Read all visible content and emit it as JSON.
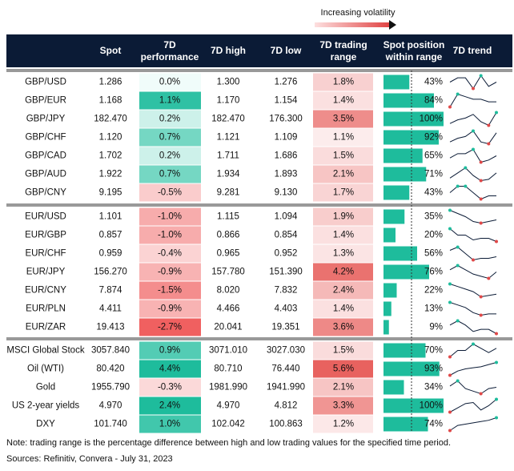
{
  "legend_note": "Increasing volatility",
  "columns": [
    [
      "Spot"
    ],
    [
      "7D",
      "performance"
    ],
    [
      "7D high"
    ],
    [
      "7D low"
    ],
    [
      "7D trading",
      "range"
    ],
    [
      "Spot position",
      "within range"
    ],
    [
      "7D trend"
    ]
  ],
  "groups": [
    [
      {
        "name": "GBP/USD",
        "spot": "1.286",
        "perf": "0.0%",
        "high": "1.300",
        "low": "1.276",
        "range": "1.8%",
        "position": "43%",
        "trend": [
          6,
          8,
          8,
          3,
          9,
          4,
          6
        ]
      },
      {
        "name": "GBP/EUR",
        "spot": "1.168",
        "perf": "1.1%",
        "high": "1.170",
        "low": "1.154",
        "range": "1.4%",
        "position": "84%",
        "trend": [
          3,
          8,
          7,
          6,
          6,
          5,
          5
        ]
      },
      {
        "name": "GBP/JPY",
        "spot": "182.470",
        "perf": "0.2%",
        "high": "182.470",
        "low": "176.300",
        "range": "3.5%",
        "position": "100%",
        "trend": [
          3,
          5,
          6,
          8,
          4,
          2,
          9
        ]
      },
      {
        "name": "GBP/CHF",
        "spot": "1.120",
        "perf": "0.7%",
        "high": "1.121",
        "low": "1.109",
        "range": "1.1%",
        "position": "92%",
        "trend": [
          3,
          5,
          6,
          9,
          3,
          2,
          8
        ]
      },
      {
        "name": "GBP/CAD",
        "spot": "1.702",
        "perf": "0.2%",
        "high": "1.711",
        "low": "1.686",
        "range": "1.5%",
        "position": "65%",
        "trend": [
          4,
          6,
          6,
          8,
          2,
          3,
          5
        ]
      },
      {
        "name": "GBP/AUD",
        "spot": "1.922",
        "perf": "0.7%",
        "high": "1.934",
        "low": "1.893",
        "range": "2.1%",
        "position": "71%",
        "trend": [
          4,
          6,
          8,
          5,
          3,
          3.5,
          6
        ]
      },
      {
        "name": "GBP/CNY",
        "spot": "9.195",
        "perf": "-0.5%",
        "high": "9.281",
        "low": "9.130",
        "range": "1.7%",
        "position": "43%",
        "trend": [
          5,
          7,
          7,
          5,
          3,
          4,
          4
        ]
      }
    ],
    [
      {
        "name": "EUR/USD",
        "spot": "1.101",
        "perf": "-1.0%",
        "high": "1.115",
        "low": "1.094",
        "range": "1.9%",
        "position": "35%",
        "trend": [
          8,
          7,
          6,
          4.5,
          4,
          4.5,
          5
        ]
      },
      {
        "name": "EUR/GBP",
        "spot": "0.857",
        "perf": "-1.0%",
        "high": "0.866",
        "low": "0.854",
        "range": "1.4%",
        "position": "20%",
        "trend": [
          8,
          6,
          6,
          4.5,
          5,
          5,
          4
        ]
      },
      {
        "name": "EUR/CHF",
        "spot": "0.959",
        "perf": "-0.4%",
        "high": "0.965",
        "low": "0.952",
        "range": "1.3%",
        "position": "56%",
        "trend": [
          7,
          8,
          6,
          4,
          4.5,
          4.5,
          5
        ]
      },
      {
        "name": "EUR/JPY",
        "spot": "156.270",
        "perf": "-0.9%",
        "high": "157.780",
        "low": "151.390",
        "range": "4.2%",
        "position": "76%",
        "trend": [
          7,
          9,
          7,
          5,
          4,
          3,
          6
        ]
      },
      {
        "name": "EUR/CNY",
        "spot": "7.874",
        "perf": "-1.5%",
        "high": "8.020",
        "low": "7.832",
        "range": "2.4%",
        "position": "22%",
        "trend": [
          8,
          7,
          6,
          5,
          3,
          3.5,
          4
        ]
      },
      {
        "name": "EUR/PLN",
        "spot": "4.411",
        "perf": "-0.9%",
        "high": "4.466",
        "low": "4.403",
        "range": "1.4%",
        "position": "13%",
        "trend": [
          8,
          7,
          6,
          4,
          3,
          3.5,
          3.5
        ]
      },
      {
        "name": "EUR/ZAR",
        "spot": "19.413",
        "perf": "-2.7%",
        "high": "20.041",
        "low": "19.351",
        "range": "3.6%",
        "position": "9%",
        "trend": [
          5,
          6,
          5,
          3.5,
          4,
          4,
          3
        ]
      }
    ],
    [
      {
        "name": "MSCI Global Stock",
        "spot": "3057.840",
        "perf": "0.9%",
        "high": "3071.010",
        "low": "3027.030",
        "range": "1.5%",
        "position": "70%",
        "trend": [
          2,
          5,
          5,
          8,
          6,
          4,
          6
        ]
      },
      {
        "name": "Oil (WTI)",
        "spot": "80.420",
        "perf": "4.4%",
        "high": "80.710",
        "low": "76.440",
        "range": "5.6%",
        "position": "93%",
        "trend": [
          2,
          4,
          5,
          5.5,
          6,
          7,
          8
        ]
      },
      {
        "name": "Gold",
        "spot": "1955.790",
        "perf": "-0.3%",
        "high": "1981.990",
        "low": "1941.990",
        "range": "2.1%",
        "position": "34%",
        "trend": [
          6,
          8,
          5,
          4,
          3,
          5,
          5.5
        ]
      },
      {
        "name": "US 2-year yields",
        "spot": "4.970",
        "perf": "2.4%",
        "high": "4.970",
        "low": "4.812",
        "range": "3.3%",
        "position": "100%",
        "trend": [
          3,
          5,
          7,
          7.5,
          4,
          6,
          9
        ]
      },
      {
        "name": "DXY",
        "spot": "101.740",
        "perf": "1.0%",
        "high": "102.042",
        "low": "100.863",
        "range": "1.2%",
        "position": "74%",
        "trend": [
          3,
          5,
          5.5,
          6,
          6.5,
          7,
          8
        ]
      }
    ]
  ],
  "note": "Note: trading range is the percentage difference between high and low trading values for the specified time period.",
  "sources": "Sources: Refinitiv, Convera - July 31, 2023"
}
